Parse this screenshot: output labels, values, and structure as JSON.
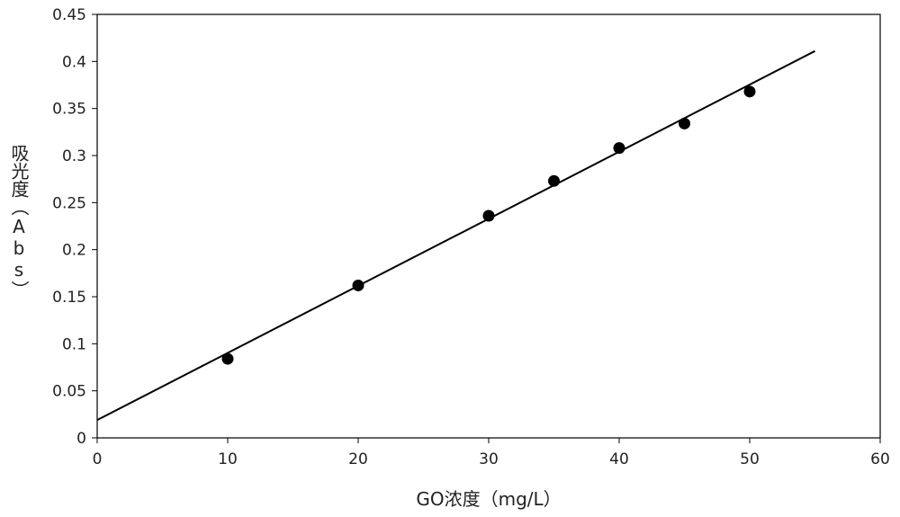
{
  "chart_data": {
    "type": "scatter",
    "title": "",
    "xlabel": "GO浓度（mg/L）",
    "ylabel": "吸光度（Abs）",
    "xlim": [
      0,
      60
    ],
    "ylim": [
      0,
      0.45
    ],
    "x_ticks": [
      "0",
      "10",
      "20",
      "30",
      "40",
      "50",
      "60"
    ],
    "y_ticks": [
      "0",
      "0.05",
      "0.1",
      "0.15",
      "0.2",
      "0.25",
      "0.3",
      "0.35",
      "0.4",
      "0.45"
    ],
    "grid": false,
    "legend": "none",
    "series": [
      {
        "points": [
          {
            "x": 10,
            "y": 0.084
          },
          {
            "x": 20,
            "y": 0.162
          },
          {
            "x": 30,
            "y": 0.236
          },
          {
            "x": 35,
            "y": 0.273
          },
          {
            "x": 40,
            "y": 0.308
          },
          {
            "x": 45,
            "y": 0.334
          },
          {
            "x": 50,
            "y": 0.368
          }
        ]
      }
    ],
    "trendline": {
      "type": "linear",
      "x_start": 0,
      "y_start": 0.019,
      "x_end": 55,
      "y_end": 0.411
    },
    "colors": {
      "marker": "#000000",
      "line": "#000000",
      "axis": "#000000"
    }
  }
}
